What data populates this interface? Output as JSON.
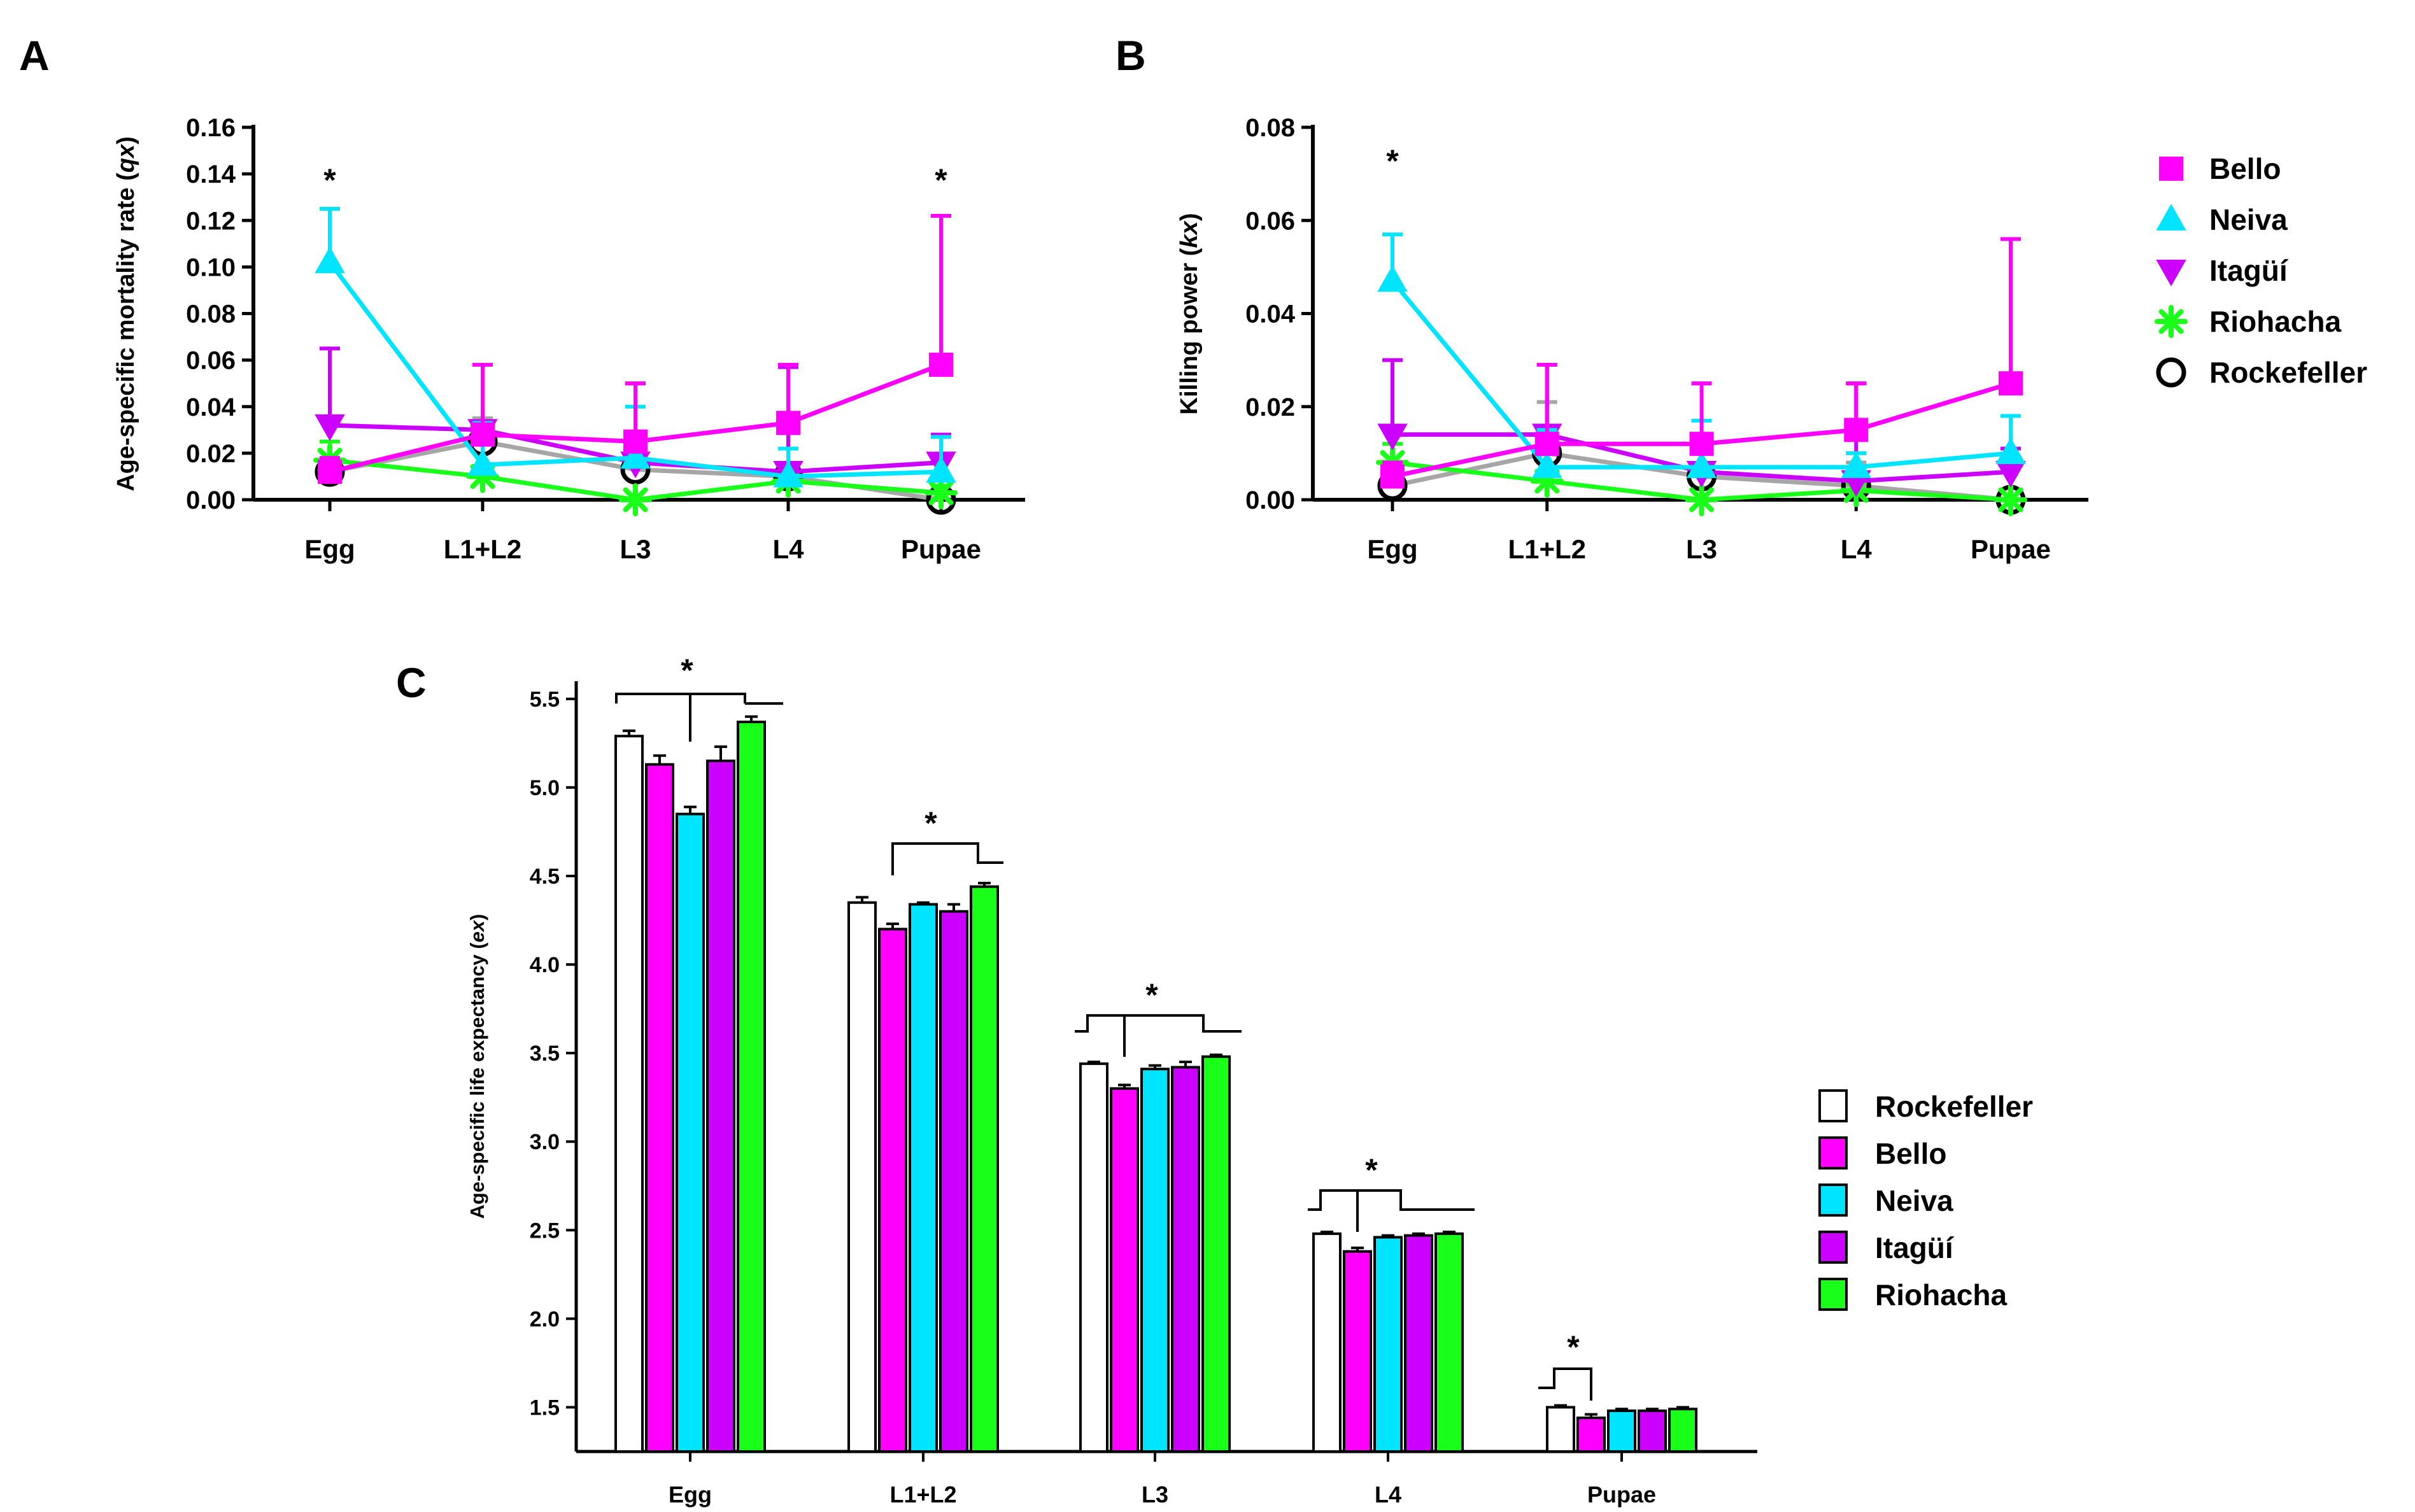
{
  "colors": {
    "Bello": "#ff00ff",
    "Neiva": "#00e5ff",
    "Itagui": "#cc00ff",
    "Riohacha": "#1aff1a",
    "Rockefeller": "#000000",
    "RockefellerLine": "#a6a6a6",
    "RockefellerBar": "#ffffff"
  },
  "chart_data": [
    {
      "panel": "A",
      "type": "line",
      "xlabel": "",
      "ylabel_prefix": "Age-specific mortality rate (",
      "ylabel_italic": "qx",
      "ylabel_suffix": ")",
      "categories": [
        "Egg",
        "L1+L2",
        "L3",
        "L4",
        "Pupae"
      ],
      "ylim": [
        0,
        0.16
      ],
      "yticks": [
        "0.00",
        "0.02",
        "0.04",
        "0.06",
        "0.08",
        "0.10",
        "0.12",
        "0.14",
        "0.16"
      ],
      "significance": [
        "*",
        "",
        "",
        "",
        "*"
      ],
      "series": [
        {
          "name": "Rockefeller",
          "marker": "circle",
          "values": [
            0.012,
            0.025,
            0.013,
            0.01,
            0.0
          ],
          "errors": [
            0,
            0.01,
            0,
            0.005,
            0
          ]
        },
        {
          "name": "Riohacha",
          "marker": "asterisk",
          "values": [
            0.017,
            0.01,
            0.0,
            0.008,
            0.003
          ],
          "errors": [
            0.008,
            0,
            0,
            0.003,
            0.003
          ]
        },
        {
          "name": "Itagui",
          "marker": "triangle-down",
          "values": [
            0.032,
            0.03,
            0.016,
            0.012,
            0.016
          ],
          "errors": [
            0.033,
            0.028,
            0.034,
            0.045,
            0.012
          ]
        },
        {
          "name": "Neiva",
          "marker": "triangle-up",
          "values": [
            0.102,
            0.015,
            0.018,
            0.01,
            0.012
          ],
          "errors": [
            0.023,
            0.018,
            0.022,
            0.012,
            0.015
          ]
        },
        {
          "name": "Bello",
          "marker": "square",
          "values": [
            0.012,
            0.028,
            0.025,
            0.033,
            0.058
          ],
          "errors": [
            0.006,
            0.03,
            0.025,
            0.025,
            0.064
          ]
        }
      ]
    },
    {
      "panel": "B",
      "type": "line",
      "xlabel": "",
      "ylabel_prefix": "Killing power (",
      "ylabel_italic": "kx",
      "ylabel_suffix": ")",
      "categories": [
        "Egg",
        "L1+L2",
        "L3",
        "L4",
        "Pupae"
      ],
      "ylim": [
        0,
        0.08
      ],
      "yticks": [
        "0.00",
        "0.02",
        "0.04",
        "0.06",
        "0.08"
      ],
      "significance": [
        "*",
        "",
        "",
        "",
        ""
      ],
      "series": [
        {
          "name": "Rockefeller",
          "marker": "circle",
          "values": [
            0.003,
            0.01,
            0.005,
            0.003,
            0.0
          ],
          "errors": [
            0,
            0.011,
            0,
            0.005,
            0
          ]
        },
        {
          "name": "Riohacha",
          "marker": "asterisk",
          "values": [
            0.008,
            0.004,
            0.0,
            0.002,
            0.0
          ],
          "errors": [
            0.004,
            0,
            0,
            0.002,
            0
          ]
        },
        {
          "name": "Itagui",
          "marker": "triangle-down",
          "values": [
            0.014,
            0.014,
            0.006,
            0.004,
            0.006
          ],
          "errors": [
            0.016,
            0.015,
            0.019,
            0.021,
            0.005
          ]
        },
        {
          "name": "Neiva",
          "marker": "triangle-up",
          "values": [
            0.047,
            0.007,
            0.007,
            0.007,
            0.01
          ],
          "errors": [
            0.01,
            0.008,
            0.01,
            0.003,
            0.008
          ]
        },
        {
          "name": "Bello",
          "marker": "square",
          "values": [
            0.005,
            0.012,
            0.012,
            0.015,
            0.025
          ],
          "errors": [
            0.003,
            0.017,
            0.013,
            0.01,
            0.031
          ]
        }
      ]
    },
    {
      "panel": "C",
      "type": "bar",
      "xlabel": "",
      "ylabel_prefix": "Age-specific life expectancy (",
      "ylabel_italic": "ex",
      "ylabel_suffix": ")",
      "categories": [
        "Egg",
        "L1+L2",
        "L3",
        "L4",
        "Pupae"
      ],
      "ylim": [
        1.25,
        5.6
      ],
      "yticks": [
        "1.5",
        "2.0",
        "2.5",
        "3.0",
        "3.5",
        "4.0",
        "4.5",
        "5.0",
        "5.5"
      ],
      "significance": [
        "*",
        "*",
        "*",
        "*",
        "*"
      ],
      "series": [
        {
          "name": "Rockefeller",
          "values": [
            5.29,
            4.35,
            3.44,
            2.48,
            1.5
          ],
          "errors": [
            0.03,
            0.03,
            0.01,
            0.01,
            0.01
          ]
        },
        {
          "name": "Bello",
          "values": [
            5.13,
            4.2,
            3.3,
            2.38,
            1.44
          ],
          "errors": [
            0.05,
            0.03,
            0.02,
            0.02,
            0.02
          ]
        },
        {
          "name": "Neiva",
          "values": [
            4.85,
            4.34,
            3.41,
            2.46,
            1.48
          ],
          "errors": [
            0.04,
            0.01,
            0.02,
            0.01,
            0.01
          ]
        },
        {
          "name": "Itagui",
          "values": [
            5.15,
            4.3,
            3.42,
            2.47,
            1.48
          ],
          "errors": [
            0.08,
            0.04,
            0.03,
            0.01,
            0.01
          ]
        },
        {
          "name": "Riohacha",
          "values": [
            5.37,
            4.44,
            3.48,
            2.48,
            1.49
          ],
          "errors": [
            0.03,
            0.02,
            0.01,
            0.01,
            0.01
          ]
        }
      ]
    }
  ],
  "legend_top": [
    "Bello",
    "Neiva",
    "Itagüí",
    "Riohacha",
    "Rockefeller"
  ],
  "legend_bottom": [
    "Rockefeller",
    "Bello",
    "Neiva",
    "Itagüí",
    "Riohacha"
  ],
  "panel_labels": [
    "A",
    "B",
    "C"
  ]
}
